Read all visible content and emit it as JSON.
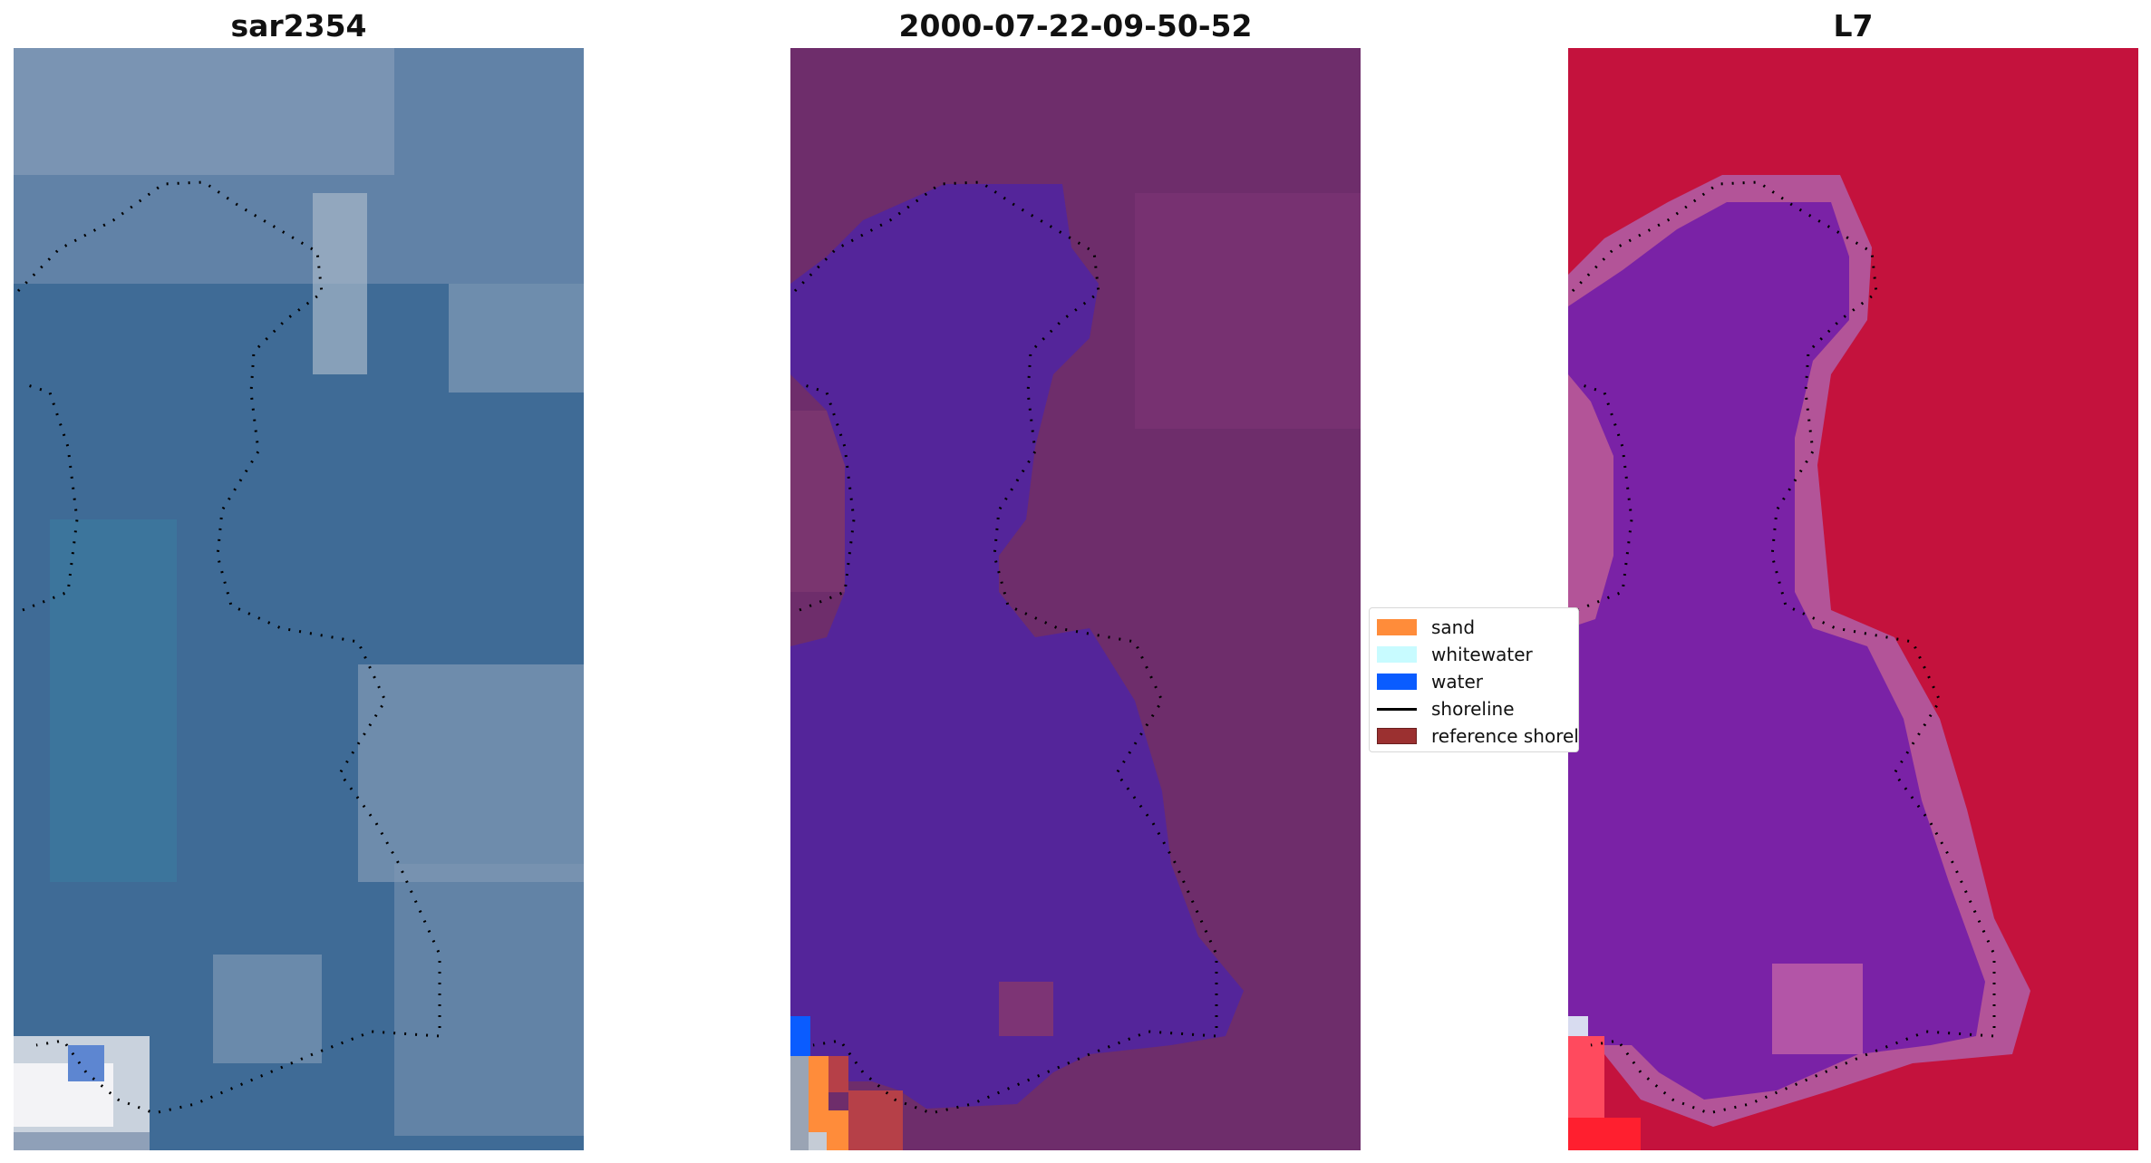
{
  "panels": [
    {
      "id": "rgb",
      "title": "sar2354",
      "palette": [
        "#3f6b96",
        "#6f8fb2"
      ]
    },
    {
      "id": "classified",
      "title": "2000-07-22-09-50-52",
      "palette": [
        "#6e2d6b",
        "#54259a"
      ]
    },
    {
      "id": "mndwi",
      "title": "L7",
      "palette": [
        "#c4123d",
        "#7a22a6"
      ]
    }
  ],
  "legend": {
    "items": [
      {
        "label": "sand",
        "color": "#ff8c3a",
        "kind": "patch"
      },
      {
        "label": "whitewater",
        "color": "#c8fbff",
        "kind": "patch"
      },
      {
        "label": "water",
        "color": "#0a5cff",
        "kind": "patch"
      },
      {
        "label": "shoreline",
        "color": "#000000",
        "kind": "line"
      },
      {
        "label": "reference shoreline",
        "color": "#9b3030",
        "kind": "patch"
      }
    ]
  }
}
